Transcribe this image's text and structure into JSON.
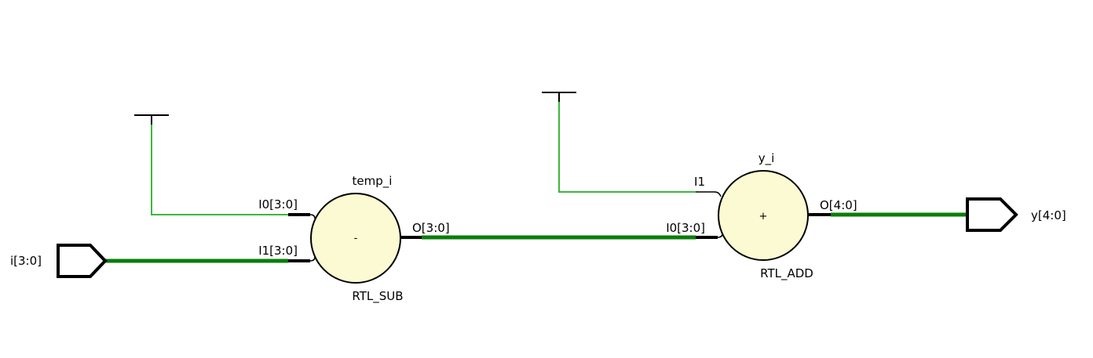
{
  "colors": {
    "net_bus": "#0a7d0a",
    "net_single": "#3cb83c",
    "pin": "#000000",
    "cell_fill": "#fbfad2",
    "cell_stroke": "#000000",
    "background": "#ffffff"
  },
  "ports": {
    "input": {
      "name": "i[3:0]"
    },
    "output": {
      "name": "y[4:0]"
    }
  },
  "cells": {
    "sub": {
      "instance": "temp_i",
      "type": "RTL_SUB",
      "symbol": "-",
      "pins": {
        "in0": "I0[3:0]",
        "in1": "I1[3:0]",
        "out": "O[3:0]"
      }
    },
    "add": {
      "instance": "y_i",
      "type": "RTL_ADD",
      "symbol": "+",
      "pins": {
        "in0": "I0[3:0]",
        "in1": "I1",
        "out": "O[4:0]"
      }
    }
  }
}
